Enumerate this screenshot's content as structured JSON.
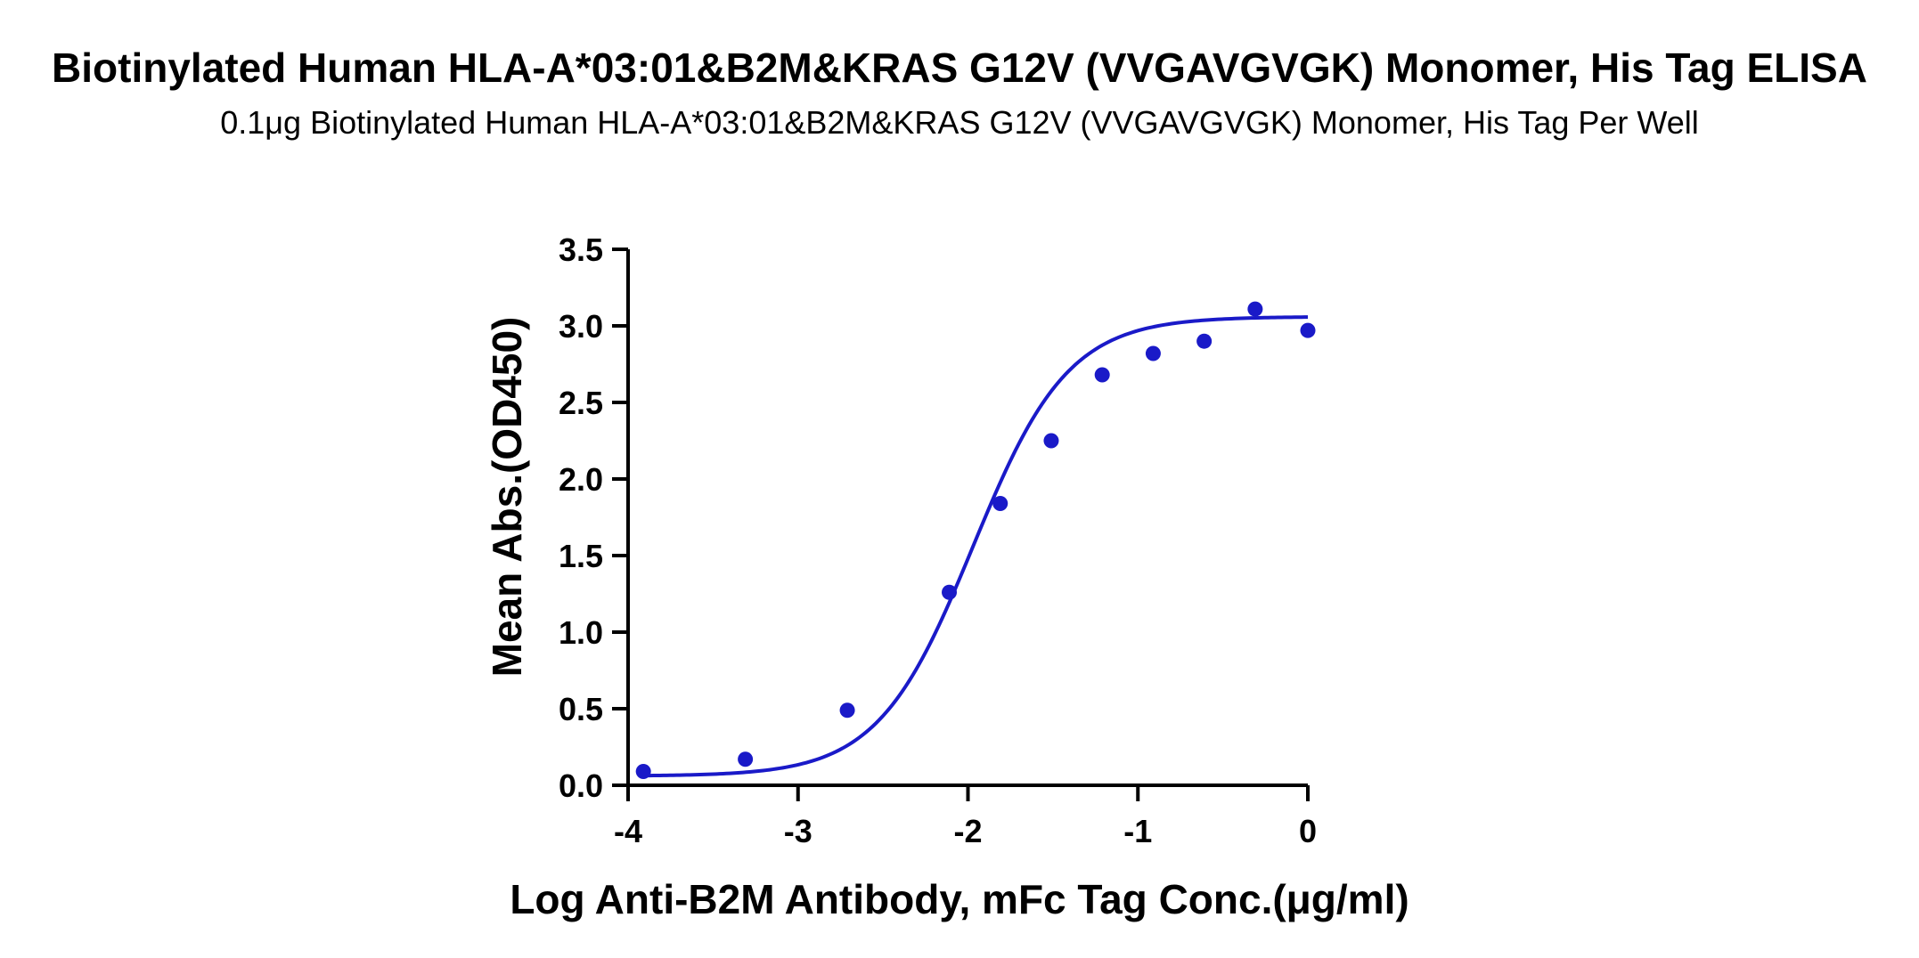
{
  "chart_data": {
    "type": "scatter",
    "title": "Biotinylated Human HLA-A*03:01&B2M&KRAS G12V (VVGAVGVGK) Monomer, His Tag ELISA",
    "subtitle": "0.1μg Biotinylated Human HLA-A*03:01&B2M&KRAS G12V (VVGAVGVGK) Monomer, His Tag Per Well",
    "xlabel": "Log Anti-B2M Antibody, mFc Tag Conc.(μg/ml)",
    "ylabel": "Mean Abs.(OD450)",
    "xlim": [
      -4,
      0
    ],
    "ylim": [
      0,
      3.5
    ],
    "x_ticks": [
      -4,
      -3,
      -2,
      -1,
      0
    ],
    "x_tick_labels": [
      "-4",
      "-3",
      "-2",
      "-1",
      "0"
    ],
    "y_ticks": [
      0,
      0.5,
      1.0,
      1.5,
      2.0,
      2.5,
      3.0,
      3.5
    ],
    "y_tick_labels": [
      "0.0",
      "0.5",
      "1.0",
      "1.5",
      "2.0",
      "2.5",
      "3.0",
      "3.5"
    ],
    "grid": false,
    "series": [
      {
        "color": "#1a1ac8",
        "x": [
          -3.91,
          -3.31,
          -2.71,
          -2.11,
          -1.81,
          -1.51,
          -1.21,
          -0.91,
          -0.61,
          -0.31,
          0.0
        ],
        "y": [
          0.09,
          0.17,
          0.49,
          1.26,
          1.84,
          2.25,
          2.68,
          2.82,
          2.9,
          3.11,
          2.97
        ],
        "fit": {
          "type": "four-parameter-logistic",
          "bottom": 0.06,
          "top": 3.06,
          "log_ec50": -1.97,
          "hill_slope": 1.55
        }
      }
    ]
  }
}
